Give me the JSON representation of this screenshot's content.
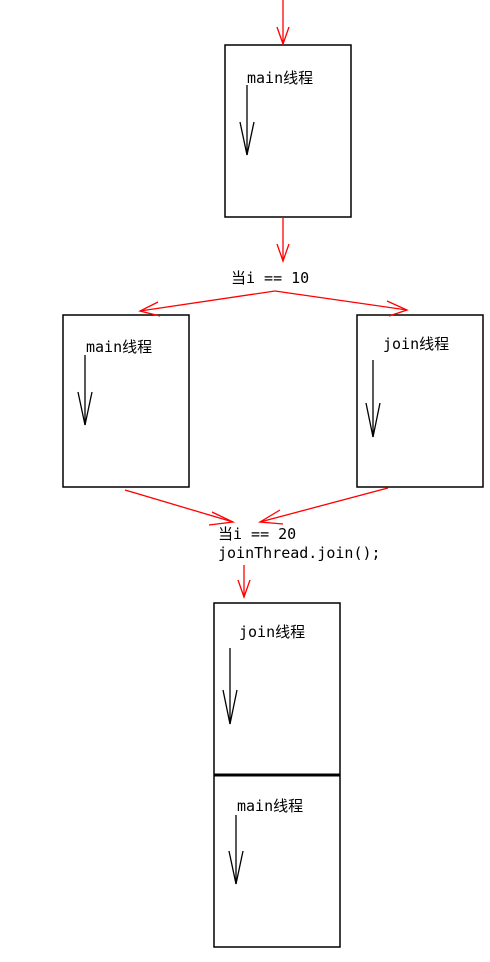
{
  "stages": {
    "initial": {
      "label": "main线程"
    },
    "fork_condition": "当i == 10",
    "parallel": {
      "left": {
        "label": "main线程"
      },
      "right": {
        "label": "join线程"
      }
    },
    "join_condition": {
      "line1": "当i == 20",
      "line2": "joinThread.join();"
    },
    "sequential": {
      "top": {
        "label": "join线程"
      },
      "bottom": {
        "label": "main线程"
      }
    }
  },
  "colors": {
    "flow_arrow": "#ff0000",
    "box_border": "#000000",
    "thread_arrow": "#000000"
  }
}
